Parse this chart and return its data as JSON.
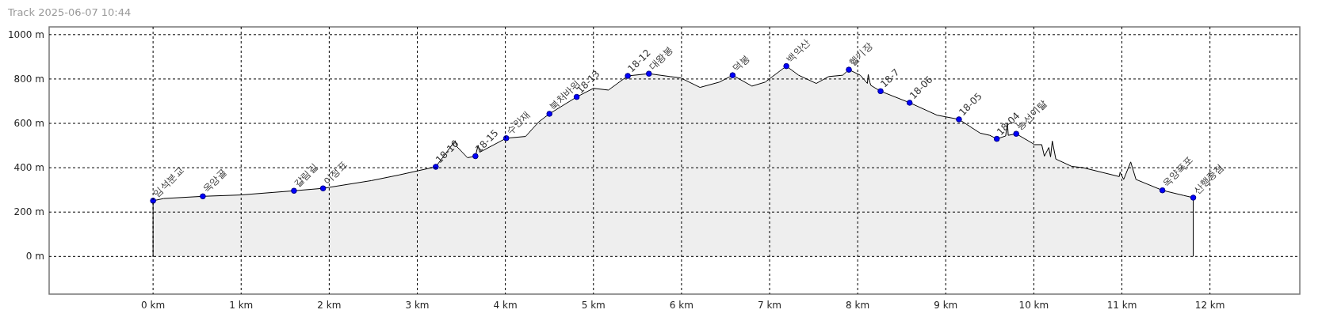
{
  "chart_data": {
    "type": "area",
    "title": "Track 2025-06-07 10:44",
    "xlim": [
      -1.18,
      13.02
    ],
    "ylim": [
      -170,
      1035
    ],
    "xticks": [
      {
        "value": 0,
        "label": "0 km"
      },
      {
        "value": 1,
        "label": "1 km"
      },
      {
        "value": 2,
        "label": "2 km"
      },
      {
        "value": 3,
        "label": "3 km"
      },
      {
        "value": 4,
        "label": "4 km"
      },
      {
        "value": 5,
        "label": "5 km"
      },
      {
        "value": 6,
        "label": "6 km"
      },
      {
        "value": 7,
        "label": "7 km"
      },
      {
        "value": 8,
        "label": "8 km"
      },
      {
        "value": 9,
        "label": "9 km"
      },
      {
        "value": 10,
        "label": "10 km"
      },
      {
        "value": 11,
        "label": "11 km"
      },
      {
        "value": 12,
        "label": "12 km"
      }
    ],
    "yticks": [
      {
        "value": 0,
        "label": "0 m"
      },
      {
        "value": 200,
        "label": "200 m"
      },
      {
        "value": 400,
        "label": "400 m"
      },
      {
        "value": 600,
        "label": "600 m"
      },
      {
        "value": 800,
        "label": "800 m"
      },
      {
        "value": 1000,
        "label": "1000 m"
      }
    ],
    "grid": true,
    "series": [
      {
        "color": "#eeeeee",
        "x": [
          0,
          0.12,
          0.565,
          0.99,
          1.6,
          1.93,
          2.48,
          2.79,
          3.21,
          3.43,
          3.45,
          3.57,
          3.66,
          3.69,
          3.71,
          4.01,
          4.23,
          4.38,
          4.5,
          4.81,
          5.0,
          5.17,
          5.39,
          5.63,
          5.87,
          5.99,
          6.21,
          6.43,
          6.58,
          6.8,
          6.95,
          7.19,
          7.33,
          7.53,
          7.67,
          7.83,
          7.9,
          8.03,
          8.11,
          8.12,
          8.14,
          8.15,
          8.26,
          8.59,
          8.9,
          9.15,
          9.39,
          9.5,
          9.58,
          9.68,
          9.7,
          9.71,
          9.8,
          10.01,
          10.09,
          10.12,
          10.17,
          10.19,
          10.21,
          10.25,
          10.43,
          10.56,
          10.97,
          10.98,
          11.02,
          11.1,
          11.16,
          11.46,
          11.7,
          11.81
        ],
        "values": [
          251,
          261,
          271,
          277,
          296,
          307,
          342,
          367,
          404,
          522,
          495,
          445,
          452,
          501,
          470,
          533,
          541,
          607,
          643,
          719,
          758,
          750,
          814,
          824,
          811,
          805,
          762,
          786,
          817,
          768,
          786,
          858,
          817,
          780,
          811,
          817,
          842,
          817,
          780,
          820,
          783,
          771,
          745,
          693,
          637,
          618,
          556,
          546,
          530,
          543,
          602,
          546,
          553,
          504,
          504,
          452,
          491,
          449,
          520,
          439,
          406,
          400,
          360,
          380,
          347,
          426,
          347,
          298,
          275,
          265
        ]
      },
      {
        "type": "scatter",
        "color": "#0000ff",
        "marker": "circle",
        "x": [
          0,
          0.565,
          1.6,
          1.93,
          3.21,
          3.66,
          4.01,
          4.5,
          4.81,
          5.39,
          5.63,
          6.58,
          7.19,
          7.9,
          8.26,
          8.59,
          9.15,
          9.58,
          9.8,
          11.46,
          11.81
        ],
        "values": [
          251,
          271,
          296,
          307,
          404,
          452,
          533,
          643,
          719,
          814,
          824,
          817,
          858,
          842,
          745,
          693,
          618,
          530,
          553,
          298,
          265
        ]
      }
    ],
    "annotations": [
      {
        "text": "임석분교",
        "x": 0,
        "y": 251
      },
      {
        "text": "옥앙골",
        "x": 0.565,
        "y": 271
      },
      {
        "text": "갈림길",
        "x": 1.6,
        "y": 296
      },
      {
        "text": "이정표",
        "x": 1.93,
        "y": 307
      },
      {
        "text": "18-16",
        "x": 3.21,
        "y": 404
      },
      {
        "text": "18-15",
        "x": 3.66,
        "y": 452
      },
      {
        "text": "수안재",
        "x": 4.01,
        "y": 533
      },
      {
        "text": "북처바위",
        "x": 4.5,
        "y": 643
      },
      {
        "text": "18-13",
        "x": 4.81,
        "y": 719
      },
      {
        "text": "18-12",
        "x": 5.39,
        "y": 814
      },
      {
        "text": "대왕봉",
        "x": 5.63,
        "y": 824
      },
      {
        "text": "덕봉",
        "x": 6.58,
        "y": 817
      },
      {
        "text": "백악산",
        "x": 7.19,
        "y": 858
      },
      {
        "text": "헬기장",
        "x": 7.9,
        "y": 842
      },
      {
        "text": "18-7",
        "x": 8.26,
        "y": 745
      },
      {
        "text": "18-06",
        "x": 8.59,
        "y": 693
      },
      {
        "text": "18-05",
        "x": 9.15,
        "y": 618
      },
      {
        "text": "18-04",
        "x": 9.58,
        "y": 530
      },
      {
        "text": "능선이탈",
        "x": 9.8,
        "y": 553
      },
      {
        "text": "옥양폭포",
        "x": 11.46,
        "y": 298
      },
      {
        "text": "산행종점",
        "x": 11.81,
        "y": 265
      }
    ]
  }
}
